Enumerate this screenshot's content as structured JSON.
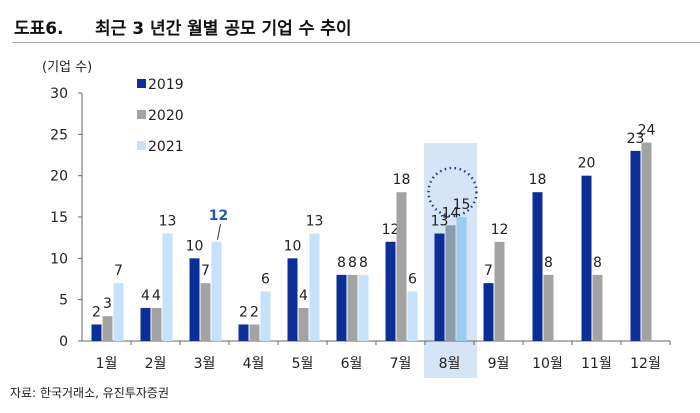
{
  "header": {
    "label": "도표6.",
    "title": "최근 3 년간 월별 공모 기업 수 추이"
  },
  "source": "자료: 한국거래소, 유진투자증권",
  "chart_data": {
    "type": "bar",
    "title": "",
    "ylabel": "(기업 수)",
    "ylim": [
      0,
      30
    ],
    "yticks": [
      0,
      5,
      10,
      15,
      20,
      25,
      30
    ],
    "grid": false,
    "legend_position": "top-left",
    "categories": [
      "1월",
      "2월",
      "3월",
      "4월",
      "5월",
      "6월",
      "7월",
      "8월",
      "9월",
      "10월",
      "11월",
      "12월"
    ],
    "series": [
      {
        "name": "2019",
        "color": "#0b2f96",
        "values": [
          2,
          4,
          10,
          2,
          10,
          8,
          12,
          13,
          7,
          18,
          20,
          23
        ]
      },
      {
        "name": "2020",
        "color": "#a3a3a3",
        "values": [
          3,
          4,
          7,
          2,
          4,
          8,
          18,
          14,
          12,
          8,
          8,
          24
        ]
      },
      {
        "name": "2021",
        "color": "#c6e1fa",
        "values": [
          7,
          13,
          12,
          6,
          13,
          8,
          6,
          15,
          null,
          null,
          null,
          null
        ]
      }
    ],
    "highlight": {
      "category": "8월",
      "background": "#d5e5f5",
      "color_2020": "#8d9cab",
      "color_2021": "#9ccbef",
      "circled_label": "15"
    },
    "annotation": {
      "category": "3월",
      "series": "2021",
      "label": "12",
      "color": "#1f5ab4"
    }
  }
}
